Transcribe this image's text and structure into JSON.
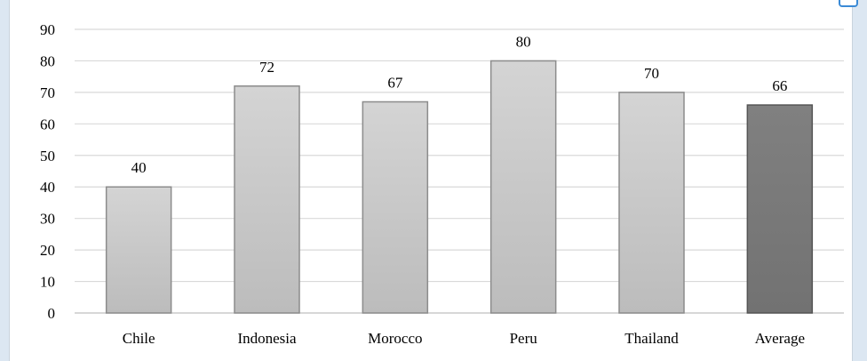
{
  "chart_data": {
    "type": "bar",
    "title": "",
    "xlabel": "",
    "ylabel": "",
    "categories": [
      "Chile",
      "Indonesia",
      "Morocco",
      "Peru",
      "Thailand",
      "Average"
    ],
    "values": [
      40,
      72,
      67,
      80,
      70,
      66
    ],
    "data_labels": [
      "40",
      "72",
      "67",
      "80",
      "70",
      "66"
    ],
    "ylim": [
      0,
      90
    ],
    "yticks": [
      0,
      10,
      20,
      30,
      40,
      50,
      60,
      70,
      80,
      90
    ],
    "grid": true,
    "legend": "none",
    "colors": {
      "bar": "#c8c8c8",
      "bar_highlight": "#7a7a7a",
      "bar_border": "#8c8c8c",
      "grid": "#d9d9d9",
      "axis": "#bfbfbf"
    },
    "highlight_category": "Average"
  }
}
